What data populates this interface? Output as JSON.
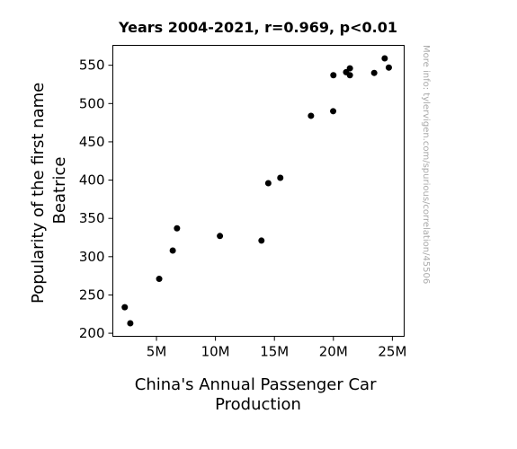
{
  "chart_data": {
    "type": "scatter",
    "title": "Years 2004-2021, r=0.969, p<0.01",
    "xlabel_lines": [
      "China's Annual Passenger Car",
      "Production"
    ],
    "ylabel_lines": [
      "Popularity of the first name",
      "Beatrice"
    ],
    "xlim": [
      1300000,
      26000000
    ],
    "ylim": [
      196,
      576
    ],
    "x_ticks": [
      {
        "value": 5000000,
        "label": "5M"
      },
      {
        "value": 10000000,
        "label": "10M"
      },
      {
        "value": 15000000,
        "label": "15M"
      },
      {
        "value": 20000000,
        "label": "20M"
      },
      {
        "value": 25000000,
        "label": "25M"
      }
    ],
    "y_ticks": [
      {
        "value": 200,
        "label": "200"
      },
      {
        "value": 250,
        "label": "250"
      },
      {
        "value": 300,
        "label": "300"
      },
      {
        "value": 350,
        "label": "350"
      },
      {
        "value": 400,
        "label": "400"
      },
      {
        "value": 450,
        "label": "450"
      },
      {
        "value": 500,
        "label": "500"
      },
      {
        "value": 550,
        "label": "550"
      }
    ],
    "grid": false,
    "marker_color": "#000000",
    "points": [
      {
        "x": 2310000,
        "y": 234
      },
      {
        "x": 2780000,
        "y": 213
      },
      {
        "x": 5230000,
        "y": 271
      },
      {
        "x": 6380000,
        "y": 308
      },
      {
        "x": 6740000,
        "y": 337
      },
      {
        "x": 10380000,
        "y": 327
      },
      {
        "x": 13900000,
        "y": 321
      },
      {
        "x": 14480000,
        "y": 396
      },
      {
        "x": 15500000,
        "y": 403
      },
      {
        "x": 18100000,
        "y": 484
      },
      {
        "x": 19980000,
        "y": 490
      },
      {
        "x": 20000000,
        "y": 537
      },
      {
        "x": 21080000,
        "y": 541
      },
      {
        "x": 21400000,
        "y": 546
      },
      {
        "x": 21400000,
        "y": 537
      },
      {
        "x": 23460000,
        "y": 540
      },
      {
        "x": 24350000,
        "y": 559
      },
      {
        "x": 24700000,
        "y": 547
      }
    ]
  },
  "watermark": "More info: tylervigen.com/spurious/correlation/45506"
}
